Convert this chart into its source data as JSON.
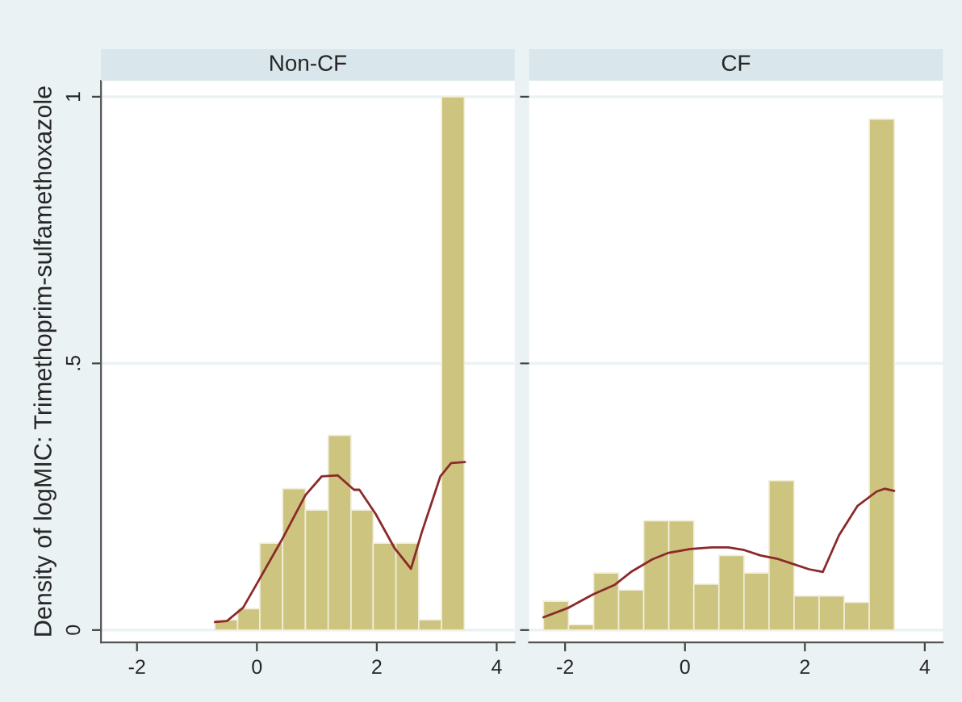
{
  "chart_data": [
    {
      "type": "histogram",
      "title": "Non-CF",
      "ylabel": "Density of logMIC: Trimethoprim-sulfamethoxazole",
      "color": "#cdc47f",
      "bins": [
        -0.7,
        -0.32,
        0.05,
        0.43,
        0.81,
        1.19,
        1.57,
        1.94,
        2.32,
        2.7,
        3.08,
        3.46
      ],
      "values": [
        0.019,
        0.04,
        0.163,
        0.265,
        0.225,
        0.365,
        0.225,
        0.163,
        0.163,
        0.019,
        1.0
      ],
      "series": [
        {
          "type": "line",
          "color": "#8b2a2a",
          "x": [
            -0.7,
            -0.5,
            -0.23,
            0.0,
            0.41,
            0.81,
            1.08,
            1.35,
            1.62,
            1.71,
            1.98,
            2.3,
            2.57,
            2.75,
            3.06,
            3.24,
            3.47
          ],
          "values": [
            0.015,
            0.017,
            0.042,
            0.087,
            0.168,
            0.253,
            0.288,
            0.29,
            0.263,
            0.263,
            0.218,
            0.153,
            0.115,
            0.183,
            0.288,
            0.313,
            0.315
          ]
        }
      ],
      "xlim": [
        -2.6,
        4.3
      ],
      "ylim": [
        -0.023,
        1.03
      ],
      "xticks": [
        -2,
        0,
        2,
        4
      ],
      "yticks": [
        0,
        {
          "value": 0.5,
          "label": ".5"
        },
        1
      ],
      "grid": "y"
    },
    {
      "type": "histogram",
      "title": "CF",
      "color": "#cdc47f",
      "bins": [
        -2.36,
        -1.942,
        -1.524,
        -1.106,
        -0.688,
        -0.27,
        0.148,
        0.566,
        0.984,
        1.402,
        1.82,
        2.238,
        2.656,
        3.074,
        3.492
      ],
      "values": [
        0.054,
        0.01,
        0.107,
        0.075,
        0.205,
        0.205,
        0.086,
        0.14,
        0.107,
        0.28,
        0.064,
        0.064,
        0.052,
        0.958
      ],
      "series": [
        {
          "type": "line",
          "color": "#8b2a2a",
          "x": [
            -2.36,
            -1.94,
            -1.53,
            -1.17,
            -0.9,
            -0.54,
            -0.27,
            0.09,
            0.45,
            0.72,
            0.99,
            1.26,
            1.53,
            1.8,
            2.07,
            2.3,
            2.57,
            2.88,
            3.2,
            3.33,
            3.49
          ],
          "values": [
            0.024,
            0.042,
            0.067,
            0.085,
            0.109,
            0.133,
            0.145,
            0.152,
            0.155,
            0.155,
            0.15,
            0.14,
            0.134,
            0.124,
            0.114,
            0.109,
            0.178,
            0.233,
            0.26,
            0.265,
            0.261
          ]
        }
      ],
      "xlim": [
        -2.6,
        4.3
      ],
      "ylim": [
        -0.023,
        1.03
      ],
      "xticks": [
        -2,
        0,
        2,
        4
      ],
      "yticks": [
        0,
        0.5,
        1
      ],
      "grid": "y",
      "tick_labels": "x"
    }
  ]
}
